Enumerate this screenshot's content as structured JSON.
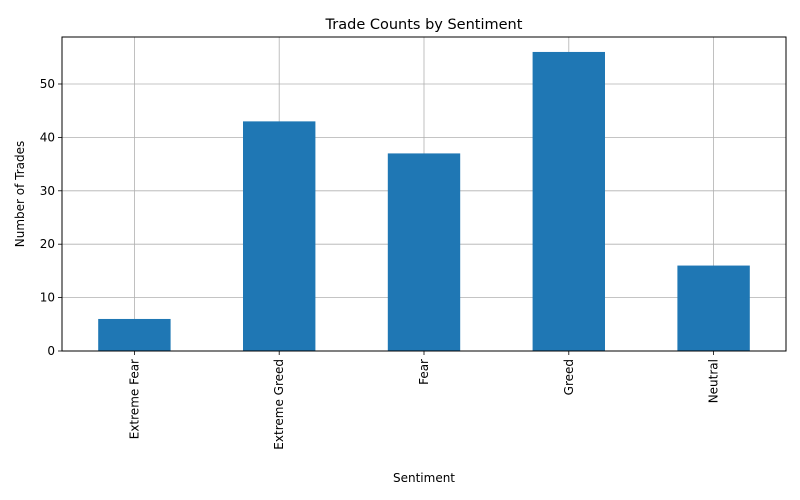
{
  "chart_data": {
    "type": "bar",
    "title": "Trade Counts by Sentiment",
    "xlabel": "Sentiment",
    "ylabel": "Number of Trades",
    "categories": [
      "Extreme Fear",
      "Extreme Greed",
      "Fear",
      "Greed",
      "Neutral"
    ],
    "values": [
      6,
      43,
      37,
      56,
      16
    ],
    "ylim": [
      0,
      58.8
    ],
    "yticks": [
      0,
      10,
      20,
      30,
      40,
      50
    ],
    "grid": true,
    "legend": "none",
    "bar_color": "#1f77b4",
    "x_tick_rotation": "vertical"
  }
}
